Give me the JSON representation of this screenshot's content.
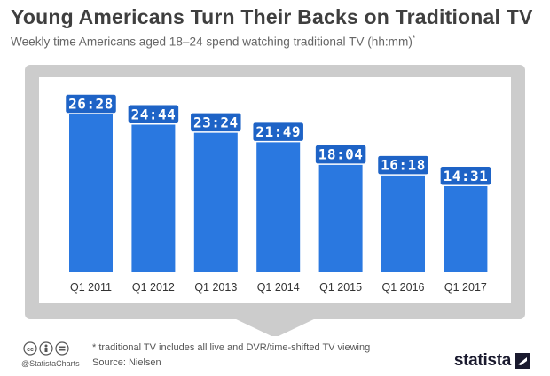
{
  "header": {
    "title": "Young Americans Turn Their Backs on Traditional TV",
    "subtitle": "Weekly time Americans aged 18–24 spend watching traditional TV (hh:mm)",
    "subtitle_mark": "*"
  },
  "chart_data": {
    "type": "bar",
    "title": "Young Americans Turn Their Backs on Traditional TV",
    "subtitle": "Weekly time Americans aged 18–24 spend watching traditional TV (hh:mm)*",
    "categories": [
      "Q1 2011",
      "Q1 2012",
      "Q1 2013",
      "Q1 2014",
      "Q1 2015",
      "Q1 2016",
      "Q1 2017"
    ],
    "values": [
      26.467,
      24.733,
      23.4,
      21.817,
      18.067,
      16.3,
      14.517
    ],
    "labels": [
      "26:28",
      "24:44",
      "23:24",
      "21:49",
      "18:04",
      "16:18",
      "14:31"
    ],
    "xlabel": "",
    "ylabel": "",
    "ylim": [
      0,
      26.467
    ],
    "grid": false,
    "legend": "none",
    "colors": {
      "bar": "#2a78e0",
      "label_box": "#1e63c6",
      "label_text": "#ffffff",
      "tv_frame": "#cccccc",
      "screen": "#ffffff",
      "axis_text": "#333333"
    }
  },
  "footer": {
    "note": "* traditional TV includes all live and DVR/time-shifted TV viewing",
    "source": "Source: Nielsen",
    "handle": "@StatistaCharts",
    "brand": "statista",
    "cc_icons": [
      "creative-commons-icon",
      "attribution-icon",
      "no-derivatives-icon"
    ]
  }
}
